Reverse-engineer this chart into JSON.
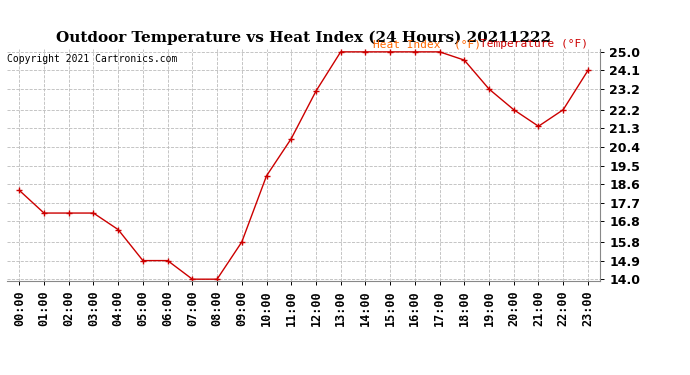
{
  "title": "Outdoor Temperature vs Heat Index (24 Hours) 20211222",
  "copyright_text": "Copyright 2021 Cartronics.com",
  "legend_heat": "Heat Index  (°F)",
  "legend_temp": "Temperature (°F)",
  "hours": [
    "00:00",
    "01:00",
    "02:00",
    "03:00",
    "04:00",
    "05:00",
    "06:00",
    "07:00",
    "08:00",
    "09:00",
    "10:00",
    "11:00",
    "12:00",
    "13:00",
    "14:00",
    "15:00",
    "16:00",
    "17:00",
    "18:00",
    "19:00",
    "20:00",
    "21:00",
    "22:00",
    "23:00"
  ],
  "temperature": [
    18.3,
    17.2,
    17.2,
    17.2,
    16.4,
    14.9,
    14.9,
    14.0,
    14.0,
    15.8,
    19.0,
    20.8,
    23.1,
    25.0,
    25.0,
    25.0,
    25.0,
    25.0,
    24.6,
    23.2,
    22.2,
    21.4,
    22.2,
    24.1
  ],
  "ylim_min": 14.0,
  "ylim_max": 25.0,
  "yticks": [
    14.0,
    14.9,
    15.8,
    16.8,
    17.7,
    18.6,
    19.5,
    20.4,
    21.3,
    22.2,
    23.2,
    24.1,
    25.0
  ],
  "line_color": "#cc0000",
  "heat_index_legend_color": "#ff6600",
  "temp_legend_color": "#cc0000",
  "bg_color": "#ffffff",
  "grid_color": "#bbbbbb",
  "title_fontsize": 11,
  "copyright_fontsize": 7,
  "legend_fontsize": 8,
  "tick_fontsize": 8.5,
  "ytick_fontsize": 9
}
